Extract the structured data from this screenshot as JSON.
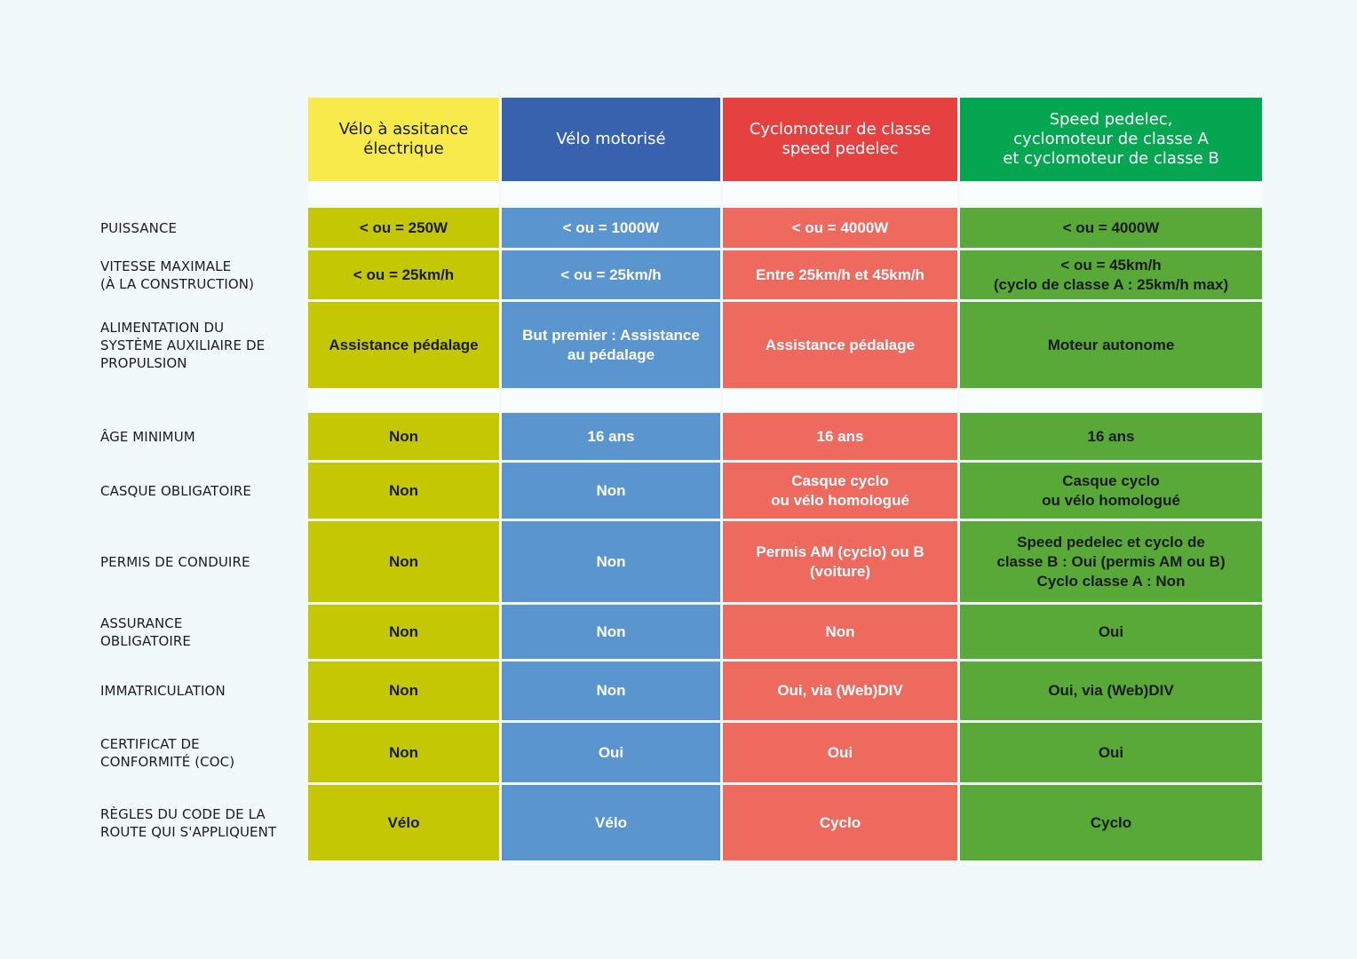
{
  "colors": {
    "background": "#f2f9fb",
    "col1_header": "#f7ea4a",
    "col2_header": "#3862ad",
    "col3_header": "#e54141",
    "col4_header": "#05a651",
    "col1_cell": "#c3c802",
    "col2_cell": "#5b95cf",
    "col3_cell": "#ee695e",
    "col4_cell": "#58a938"
  },
  "headers": [
    "Vélo à assitance\nélectrique",
    "Vélo motorisé",
    "Cyclomoteur de classe\nspeed pedelec",
    "Speed pedelec,\ncyclomoteur de classe A\net cyclomoteur de classe B"
  ],
  "rows": [
    {
      "label": "PUISSANCE",
      "cells": [
        "< ou = 250W",
        "< ou = 1000W",
        "< ou = 4000W",
        "< ou = 4000W"
      ]
    },
    {
      "label": "VITESSE MAXIMALE\n(À LA CONSTRUCTION)",
      "cells": [
        "< ou = 25km/h",
        "< ou = 25km/h",
        "Entre 25km/h et 45km/h",
        "< ou = 45km/h\n(cyclo de classe A : 25km/h max)"
      ]
    },
    {
      "label": "ALIMENTATION DU\nSYSTÈME AUXILIAIRE DE\nPROPULSION",
      "cells": [
        "Assistance pédalage",
        "But premier : Assistance\nau pédalage",
        "Assistance pédalage",
        "Moteur autonome"
      ]
    },
    {
      "label": "ÂGE MINIMUM",
      "cells": [
        "Non",
        "16 ans",
        "16 ans",
        "16 ans"
      ]
    },
    {
      "label": "CASQUE OBLIGATOIRE",
      "cells": [
        "Non",
        "Non",
        "Casque cyclo\nou vélo homologué",
        "Casque cyclo\nou vélo homologué"
      ]
    },
    {
      "label": "PERMIS DE CONDUIRE",
      "cells": [
        "Non",
        "Non",
        "Permis AM (cyclo) ou B\n(voiture)",
        "Speed pedelec et cyclo de\nclasse B : Oui (permis AM ou B)\nCyclo classe A : Non"
      ]
    },
    {
      "label": "ASSURANCE\nOBLIGATOIRE",
      "cells": [
        "Non",
        "Non",
        "Non",
        "Oui"
      ]
    },
    {
      "label": "IMMATRICULATION",
      "cells": [
        "Non",
        "Non",
        "Oui, via (Web)DIV",
        "Oui, via (Web)DIV"
      ]
    },
    {
      "label": "CERTIFICAT DE\nCONFORMITÉ (COC)",
      "cells": [
        "Non",
        "Oui",
        "Oui",
        "Oui"
      ]
    },
    {
      "label": "RÈGLES DU CODE DE LA\nROUTE QUI S'APPLIQUENT",
      "cells": [
        "Vélo",
        "Vélo",
        "Cyclo",
        "Cyclo"
      ]
    }
  ]
}
